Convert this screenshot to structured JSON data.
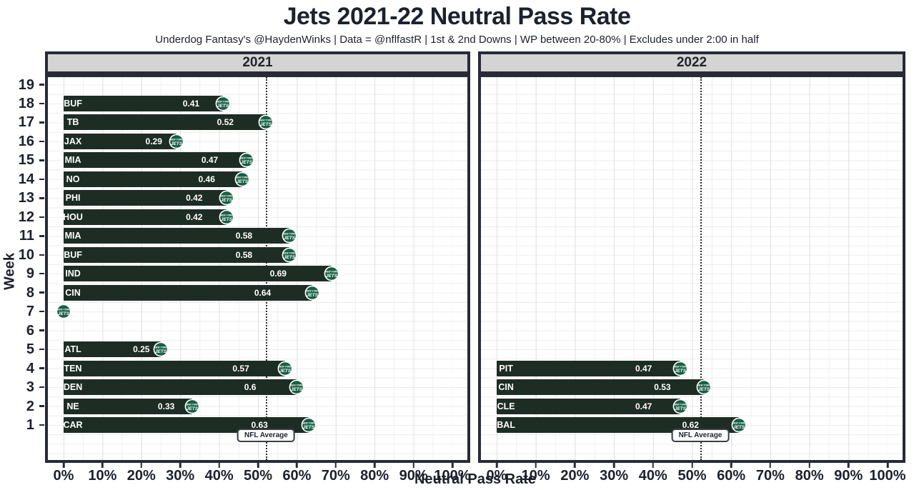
{
  "header": {
    "title": "Jets 2021-22 Neutral Pass Rate",
    "subtitle": "Underdog Fantasy's @HaydenWinks | Data = @nflfastR | 1st & 2nd Downs | WP between 20-80% | Excludes under 2:00 in half"
  },
  "axes": {
    "x_title": "Neutral Pass Rate",
    "y_title": "Week",
    "x_ticks": [
      "0%",
      "10%",
      "20%",
      "30%",
      "40%",
      "50%",
      "60%",
      "70%",
      "80%",
      "90%",
      "100%"
    ],
    "y_ticks": [
      "19",
      "18",
      "17",
      "16",
      "15",
      "14",
      "13",
      "12",
      "11",
      "10",
      "9",
      "8",
      "7",
      "6",
      "5",
      "4",
      "3",
      "2",
      "1"
    ]
  },
  "nfl_average": {
    "label": "NFL Average",
    "value": 0.521
  },
  "colors": {
    "bar": "#1e2d24",
    "logo_green": "#175f44",
    "ink": "#1d212e",
    "strip_bg": "#d4d4d4",
    "panel_border": "#272b36"
  },
  "chart_data": {
    "type": "bar",
    "orientation": "horizontal",
    "xlabel": "Neutral Pass Rate",
    "ylabel": "Week",
    "x_range": [
      0,
      1
    ],
    "x_tick_step": 0.1,
    "grid": true,
    "reference_line": {
      "name": "NFL Average",
      "value": 0.521
    },
    "marker_icon": "jets-logo-icon",
    "facets": [
      {
        "label": "2021",
        "bars": [
          {
            "week": 18,
            "team": "BUF",
            "value": 0.41,
            "value_label": "0.41"
          },
          {
            "week": 17,
            "team": "TB",
            "value": 0.52,
            "value_label": "0.52"
          },
          {
            "week": 16,
            "team": "JAX",
            "value": 0.29,
            "value_label": "0.29"
          },
          {
            "week": 15,
            "team": "MIA",
            "value": 0.47,
            "value_label": "0.47"
          },
          {
            "week": 14,
            "team": "NO",
            "value": 0.46,
            "value_label": "0.46"
          },
          {
            "week": 13,
            "team": "PHI",
            "value": 0.42,
            "value_label": "0.42"
          },
          {
            "week": 12,
            "team": "HOU",
            "value": 0.42,
            "value_label": "0.42"
          },
          {
            "week": 11,
            "team": "MIA",
            "value": 0.58,
            "value_label": "0.58"
          },
          {
            "week": 10,
            "team": "BUF",
            "value": 0.58,
            "value_label": "0.58"
          },
          {
            "week": 9,
            "team": "IND",
            "value": 0.69,
            "value_label": "0.69"
          },
          {
            "week": 8,
            "team": "CIN",
            "value": 0.64,
            "value_label": "0.64"
          },
          {
            "week": 7,
            "team": "",
            "value": 0,
            "value_label": ""
          },
          {
            "week": 5,
            "team": "ATL",
            "value": 0.25,
            "value_label": "0.25"
          },
          {
            "week": 4,
            "team": "TEN",
            "value": 0.57,
            "value_label": "0.57"
          },
          {
            "week": 3,
            "team": "DEN",
            "value": 0.6,
            "value_label": "0.6"
          },
          {
            "week": 2,
            "team": "NE",
            "value": 0.33,
            "value_label": "0.33"
          },
          {
            "week": 1,
            "team": "CAR",
            "value": 0.63,
            "value_label": "0.63"
          }
        ]
      },
      {
        "label": "2022",
        "bars": [
          {
            "week": 4,
            "team": "PIT",
            "value": 0.47,
            "value_label": "0.47"
          },
          {
            "week": 3,
            "team": "CIN",
            "value": 0.53,
            "value_label": "0.53"
          },
          {
            "week": 2,
            "team": "CLE",
            "value": 0.47,
            "value_label": "0.47"
          },
          {
            "week": 1,
            "team": "BAL",
            "value": 0.62,
            "value_label": "0.62"
          }
        ]
      }
    ]
  }
}
